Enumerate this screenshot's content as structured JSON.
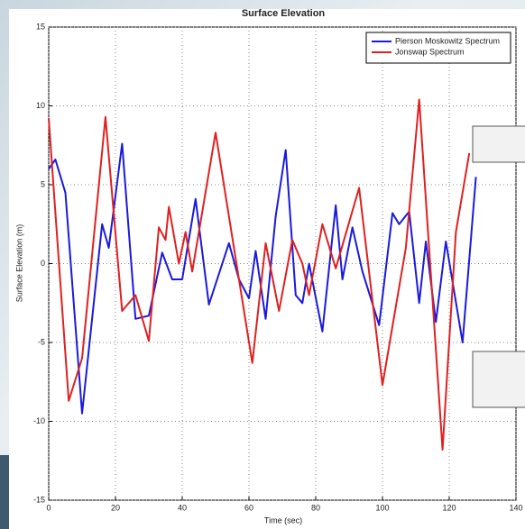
{
  "chart_data": {
    "type": "line",
    "title": "Surface Elevation",
    "x_label": "Time (sec)",
    "y_label": "Surface Elevation (m)",
    "xlim": [
      0,
      140
    ],
    "xticks": [
      0,
      20,
      40,
      60,
      80,
      100,
      120,
      140
    ],
    "ylim": [
      -15,
      15
    ],
    "yticks": [
      -15,
      -10,
      -5,
      0,
      5,
      10,
      15
    ],
    "grid": true,
    "legend": "top-right",
    "series": [
      {
        "name": "Pierson Moskowitz Spectrum",
        "color": "#1a1adc",
        "x": [
          0,
          2,
          5,
          10,
          16,
          18,
          22,
          26,
          30,
          34,
          37,
          40,
          44,
          48,
          54,
          57,
          60,
          62,
          65,
          68,
          71,
          74,
          76,
          78,
          82,
          86,
          88,
          91,
          94,
          99,
          103,
          105,
          108,
          111,
          113,
          116,
          119,
          124,
          128
        ],
        "values": [
          6,
          6.6,
          4.5,
          -9.5,
          2.5,
          1,
          7.6,
          -3.5,
          -3.3,
          0.7,
          -1,
          -1,
          4.1,
          -2.6,
          1.3,
          -1,
          -2.2,
          0.8,
          -3.5,
          3,
          7.2,
          -2,
          -2.5,
          0,
          -4.3,
          3.7,
          -1,
          2.3,
          -0.5,
          -3.9,
          3.2,
          2.5,
          3.3,
          -2.5,
          1.4,
          -3.7,
          1.4,
          -5,
          5.5
        ]
      },
      {
        "name": "Jonswap Spectrum",
        "color": "#e02020",
        "x": [
          0,
          6,
          10,
          17,
          22,
          26,
          30,
          33,
          35,
          36,
          39,
          41,
          43,
          50,
          61,
          65,
          69,
          73,
          76,
          78,
          82,
          86,
          93,
          100,
          107,
          111,
          118,
          122,
          126
        ],
        "values": [
          9.2,
          -8.7,
          -6,
          9.3,
          -3,
          -2,
          -4.9,
          2.3,
          1.5,
          3.6,
          0,
          2,
          -0.5,
          8.3,
          -6.3,
          1.3,
          -3,
          1.5,
          0,
          -2,
          2.5,
          -0.3,
          4.8,
          -7.7,
          1,
          10.4,
          -11.8,
          2,
          7
        ]
      }
    ]
  }
}
